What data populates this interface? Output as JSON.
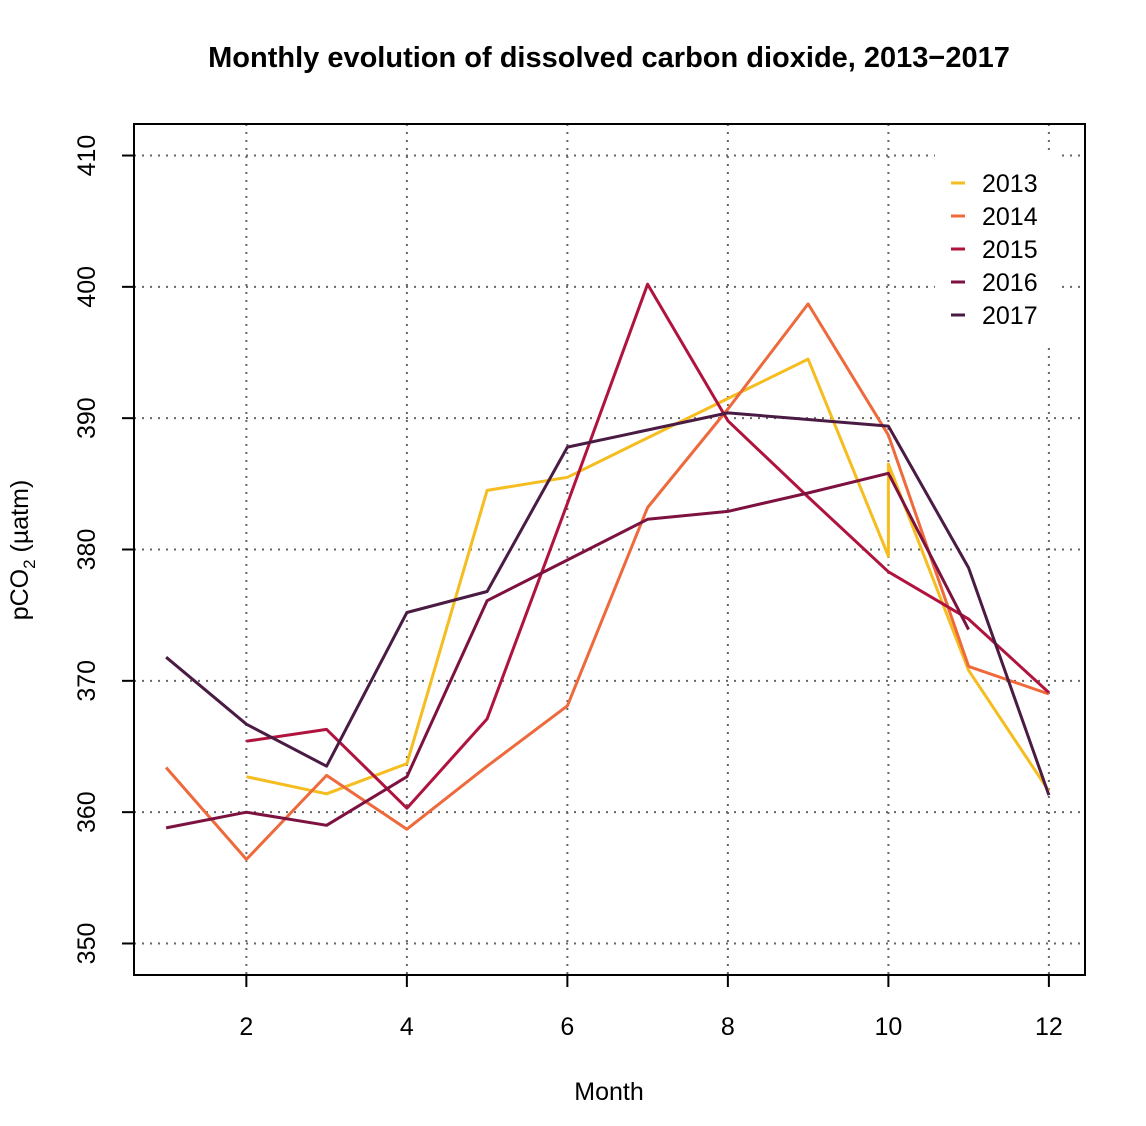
{
  "chart_data": {
    "type": "line",
    "title": "Monthly evolution of dissolved carbon dioxide, 2013−2017",
    "xlabel": "Month",
    "ylabel": "pCO",
    "ylabel_subscript": "2",
    "ylabel_unit": " (µatm)",
    "xlim": [
      0.6,
      12.45
    ],
    "ylim": [
      347.6,
      412.4
    ],
    "xticks": [
      2,
      4,
      6,
      8,
      10,
      12
    ],
    "xtick_labels": [
      "2",
      "4",
      "6",
      "8",
      "10",
      "12"
    ],
    "yticks": [
      350,
      360,
      370,
      380,
      390,
      400,
      410
    ],
    "ytick_labels": [
      "350",
      "360",
      "370",
      "380",
      "390",
      "400",
      "410"
    ],
    "grid": true,
    "legend_position": "top-right",
    "series": [
      {
        "name": "2013",
        "color": "#F5BD1F",
        "points": [
          [
            2,
            362.7
          ],
          [
            3,
            361.4
          ],
          [
            4,
            363.7
          ],
          [
            5,
            384.5
          ],
          [
            6,
            385.5
          ],
          [
            7,
            388.5
          ],
          [
            8,
            391.5
          ],
          [
            9,
            394.5
          ],
          [
            10,
            379.5
          ],
          [
            10,
            386.5
          ],
          [
            11,
            370.8
          ],
          [
            12,
            361.6
          ]
        ]
      },
      {
        "name": "2014",
        "color": "#EE6A3C",
        "points": [
          [
            1,
            363.4
          ],
          [
            2,
            356.4
          ],
          [
            3,
            362.8
          ],
          [
            4,
            358.7
          ],
          [
            5,
            363.5
          ],
          [
            6,
            368.1
          ],
          [
            7,
            383.2
          ],
          [
            8,
            390.7
          ],
          [
            9,
            398.7
          ],
          [
            10,
            388.7
          ],
          [
            11,
            371.1
          ],
          [
            12,
            369.0
          ]
        ]
      },
      {
        "name": "2015",
        "color": "#B0133E",
        "points": [
          [
            2,
            365.4
          ],
          [
            3,
            366.3
          ],
          [
            4,
            360.3
          ],
          [
            5,
            367.1
          ],
          [
            6,
            383.5
          ],
          [
            7,
            400.2
          ],
          [
            8,
            389.8
          ],
          [
            9,
            384.0
          ],
          [
            10,
            378.3
          ],
          [
            11,
            374.7
          ],
          [
            12,
            369.1
          ]
        ]
      },
      {
        "name": "2016",
        "color": "#7D1240",
        "points": [
          [
            1,
            358.8
          ],
          [
            2,
            360.0
          ],
          [
            3,
            359.0
          ],
          [
            4,
            362.7
          ],
          [
            5,
            376.1
          ],
          [
            6,
            379.2
          ],
          [
            7,
            382.3
          ],
          [
            8,
            382.9
          ],
          [
            9,
            384.3
          ],
          [
            10,
            385.8
          ],
          [
            11,
            373.9
          ]
        ]
      },
      {
        "name": "2017",
        "color": "#4A1B43",
        "points": [
          [
            1,
            371.8
          ],
          [
            2,
            366.7
          ],
          [
            3,
            363.5
          ],
          [
            4,
            375.2
          ],
          [
            5,
            376.8
          ],
          [
            6,
            387.8
          ],
          [
            7,
            389.1
          ],
          [
            8,
            390.4
          ],
          [
            9,
            389.9
          ],
          [
            10,
            389.4
          ],
          [
            11,
            378.6
          ],
          [
            12,
            361.3
          ]
        ]
      }
    ]
  }
}
